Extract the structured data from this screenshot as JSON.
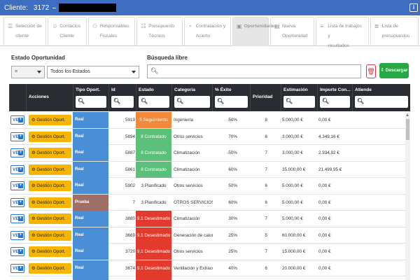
{
  "titlebar": {
    "label": "Cliente:",
    "client_id": "3172",
    "info_icon": "info-icon"
  },
  "tabs": [
    {
      "line1": "Selección de",
      "line2": "cliente",
      "icon": "list-icon",
      "active": false
    },
    {
      "line1": "Contactos",
      "line2": "Cliente",
      "icon": "contacts-icon",
      "active": false
    },
    {
      "line1": "Responsables",
      "line2": "Fiscales",
      "icon": "users-icon",
      "active": false
    },
    {
      "line1": "Presupuesto",
      "line2": "Técnico",
      "icon": "document-icon",
      "active": false
    },
    {
      "line1": "Contratación y",
      "line2": "Acierto",
      "icon": "handshake-icon",
      "active": false
    },
    {
      "line1": "Oportunidades",
      "line2": "",
      "icon": "opportunity-icon",
      "active": true
    },
    {
      "line1": "Nueva",
      "line2": "Oportunidad",
      "icon": "new-document-icon",
      "active": false
    },
    {
      "line1": "Lista de trabajos y",
      "line2": "resultados",
      "icon": "task-list-icon",
      "active": false
    },
    {
      "line1": "Lista de",
      "line2": "presupuestos",
      "icon": "budget-list-icon",
      "active": false
    }
  ],
  "filters": {
    "estado_label": "Estado Oportunidad",
    "operator_value": "=",
    "estado_value": "Todos los Estados",
    "search_label": "Búsqueda libre",
    "search_placeholder": "",
    "download_label": "Descargar"
  },
  "columns": [
    {
      "label": "",
      "search": false
    },
    {
      "label": "Acciones",
      "search": false
    },
    {
      "label": "Tipo Oport.",
      "search": true
    },
    {
      "label": "Id",
      "search": true
    },
    {
      "label": "Estado",
      "search": true
    },
    {
      "label": "Categoría",
      "search": true
    },
    {
      "label": "% Éxito",
      "search": true
    },
    {
      "label": "Prioridad",
      "search": false
    },
    {
      "label": "Estimación",
      "search": true
    },
    {
      "label": "Importe Con...",
      "search": true
    },
    {
      "label": "Atiende",
      "search": true
    }
  ],
  "row_buttons": {
    "ver": "VER",
    "gestion": "Gestión Oport."
  },
  "colors": {
    "real": "#4a8ed6",
    "prueba": "#a07068",
    "seguimiento": "#f08a3a",
    "contratado": "#5cc07a",
    "planificado": "#ffffff",
    "desestimado": "#e23b2e"
  },
  "rows": [
    {
      "tipo": "Real",
      "tipo_kind": "real",
      "id": "5919",
      "estado": "5 Seguimiento",
      "estado_kind": "seguimiento",
      "categoria": "Ingeniería",
      "exito": "50%",
      "prioridad": "8",
      "estimacion": "5.000,00 €",
      "importe": "0,00 €",
      "atiende": ""
    },
    {
      "tipo": "Real",
      "tipo_kind": "real",
      "id": "5894",
      "estado": "8 Contratado",
      "estado_kind": "contratado",
      "categoria": "Otros servicios",
      "exito": "70%",
      "prioridad": "6",
      "estimacion": "3.000,00 €",
      "importe": "4.349,16 €",
      "atiende": ""
    },
    {
      "tipo": "Real",
      "tipo_kind": "real",
      "id": "5887",
      "estado": "8 Contratado",
      "estado_kind": "contratado",
      "categoria": "Climatización",
      "exito": "50%",
      "prioridad": "7",
      "estimacion": "3.000,00 €",
      "importe": "2.934,92 €",
      "atiende": ""
    },
    {
      "tipo": "Real",
      "tipo_kind": "real",
      "id": "5861",
      "estado": "8 Contratado",
      "estado_kind": "contratado",
      "categoria": "Climatización",
      "exito": "60%",
      "prioridad": "7",
      "estimacion": "35.000,00 €",
      "importe": "21.499,95 €",
      "atiende": ""
    },
    {
      "tipo": "Real",
      "tipo_kind": "real",
      "id": "5902",
      "estado": "3 Planificado",
      "estado_kind": "planificado",
      "categoria": "Otros servicios",
      "exito": "50%",
      "prioridad": "6",
      "estimacion": "5.000,00 €",
      "importe": "0,00 €",
      "atiende": ""
    },
    {
      "tipo": "Prueba",
      "tipo_kind": "prueba",
      "id": "7",
      "estado": "3 Planificado",
      "estado_kind": "planificado",
      "categoria": "OTROS SERVICIOS",
      "exito": "60%",
      "prioridad": "6",
      "estimacion": "5.000,00 €",
      "importe": "0,00 €",
      "atiende": ""
    },
    {
      "tipo": "Real",
      "tipo_kind": "real",
      "id": "3880",
      "estado": "9.1 Desestimado",
      "estado_kind": "desestimado",
      "categoria": "Climatización",
      "exito": "30%",
      "prioridad": "7",
      "estimacion": "5.000,00 €",
      "importe": "0,00 €",
      "atiende": ""
    },
    {
      "tipo": "Real",
      "tipo_kind": "real",
      "id": "3669",
      "estado": "9.1 Desestimado",
      "estado_kind": "desestimado",
      "categoria": "Generación de calor",
      "exito": "25%",
      "prioridad": "5",
      "estimacion": "60.000,00 €",
      "importe": "0,00 €",
      "atiende": ""
    },
    {
      "tipo": "Real",
      "tipo_kind": "real",
      "id": "3720",
      "estado": "9.1 Desestimado",
      "estado_kind": "desestimado",
      "categoria": "Otros servicios",
      "exito": "25%",
      "prioridad": "7",
      "estimacion": "15.000,00 €",
      "importe": "0,00 €",
      "atiende": ""
    },
    {
      "tipo": "Real",
      "tipo_kind": "real",
      "id": "3674",
      "estado": "9.1 Desestimado",
      "estado_kind": "desestimado",
      "categoria": "Ventilación y Extracción",
      "exito": "40%",
      "prioridad": "6",
      "estimacion": "20.000,00 €",
      "importe": "0,00 €",
      "atiende": ""
    },
    {
      "tipo": "",
      "tipo_kind": "real",
      "id": "",
      "estado": "",
      "estado_kind": "desestimado",
      "categoria": "",
      "exito": "",
      "prioridad": "",
      "estimacion": "",
      "importe": "",
      "atiende": ""
    }
  ]
}
